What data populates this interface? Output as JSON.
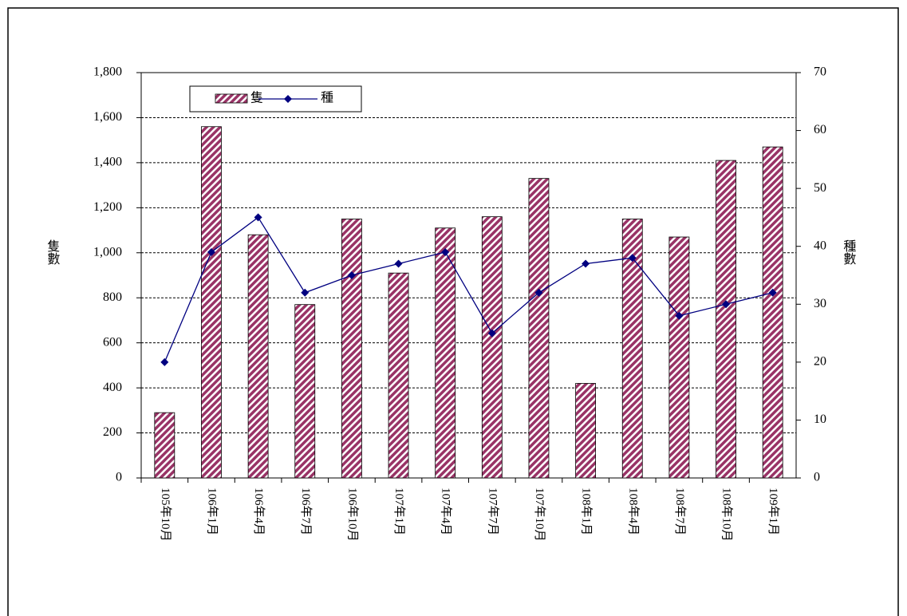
{
  "chart_data": {
    "type": "bar-line",
    "categories": [
      "105年10月",
      "106年1月",
      "106年4月",
      "106年7月",
      "106年10月",
      "107年1月",
      "107年4月",
      "107年7月",
      "107年10月",
      "108年1月",
      "108年4月",
      "108年7月",
      "108年10月",
      "109年1月"
    ],
    "series": [
      {
        "name": "隻",
        "type": "bar",
        "color": "#993366",
        "values": [
          290,
          1560,
          1080,
          770,
          1150,
          910,
          1110,
          1160,
          1330,
          420,
          1150,
          1070,
          1410,
          1470
        ]
      },
      {
        "name": "種",
        "type": "line",
        "axis": "y2",
        "color": "#000080",
        "values": [
          20,
          39,
          45,
          32,
          35,
          37,
          39,
          25,
          32,
          37,
          38,
          28,
          30,
          32
        ]
      }
    ],
    "ylabel": "隻數",
    "y2label": "種數",
    "ylim": [
      0,
      1800
    ],
    "yticks": [
      0,
      200,
      400,
      600,
      800,
      {
        "value": 1000,
        "label": "1,000"
      },
      {
        "value": 1200,
        "label": "1,200"
      },
      {
        "value": 1400,
        "label": "1,400"
      },
      {
        "value": 1600,
        "label": "1,600"
      },
      {
        "value": 1800,
        "label": "1,800"
      }
    ],
    "y2lim": [
      0,
      70
    ],
    "y2ticks": [
      0,
      10,
      20,
      30,
      40,
      50,
      60,
      70
    ],
    "grid": true,
    "legend": "top-left"
  }
}
